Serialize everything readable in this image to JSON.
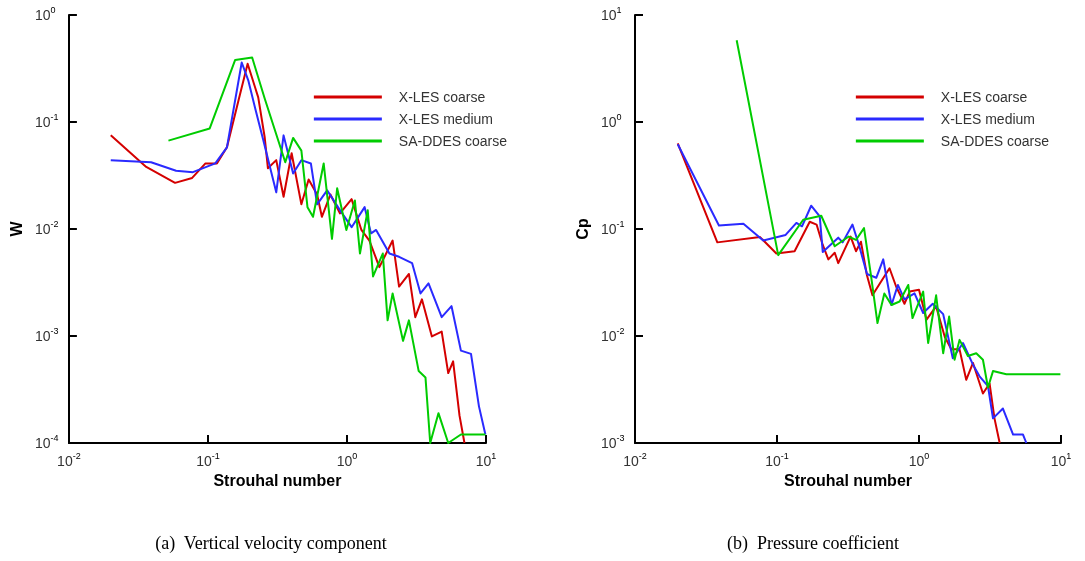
{
  "chart_data": [
    {
      "type": "line",
      "title": "(a)  Vertical velocity component",
      "xlabel": "Strouhal number",
      "ylabel": "W",
      "log": "xy",
      "grid": false,
      "legend": "top right",
      "marker": "none",
      "line_style": "solid",
      "xlim": [
        0.01,
        10
      ],
      "ylim": [
        0.0001,
        1
      ],
      "xticks": [
        {
          "value": 0.01,
          "label": "10$^{-2}$"
        },
        {
          "value": 0.1,
          "label": "10$^{-1}$"
        },
        {
          "value": 1,
          "label": "10$^{0}$"
        },
        {
          "value": 10,
          "label": "10$^{1}$"
        }
      ],
      "yticks": [
        {
          "value": 0.0001,
          "label": "10$^{-4}$"
        },
        {
          "value": 0.001,
          "label": "10$^{-3}$"
        },
        {
          "value": 0.01,
          "label": "10$^{-2}$"
        },
        {
          "value": 0.1,
          "label": "10$^{-1}$"
        },
        {
          "value": 1,
          "label": "10$^{0}$"
        }
      ],
      "series": [
        {
          "name": "X-LES coarse",
          "color": "#d40000",
          "x": [
            0.02,
            0.036,
            0.058,
            0.077,
            0.096,
            0.116,
            0.137,
            0.166,
            0.193,
            0.23,
            0.256,
            0.27,
            0.31,
            0.35,
            0.4,
            0.47,
            0.53,
            0.61,
            0.66,
            0.76,
            0.89,
            1.08,
            1.27,
            1.45,
            1.71,
            2.13,
            2.37,
            2.79,
            3.1,
            3.46,
            4.08,
            4.8,
            5.35,
            5.8,
            6.45,
            7.0
          ],
          "values": [
            0.075,
            0.038,
            0.027,
            0.03,
            0.041,
            0.041,
            0.058,
            0.16,
            0.35,
            0.17,
            0.072,
            0.037,
            0.044,
            0.02,
            0.051,
            0.017,
            0.029,
            0.021,
            0.013,
            0.021,
            0.014,
            0.019,
            0.0098,
            0.0078,
            0.0044,
            0.0078,
            0.0029,
            0.0038,
            0.0015,
            0.0022,
            0.00099,
            0.0011,
            0.00045,
            0.00058,
            0.00018,
            0.0001
          ]
        },
        {
          "name": "X-LES medium",
          "color": "#2a2aff",
          "x": [
            0.02,
            0.039,
            0.059,
            0.078,
            0.113,
            0.137,
            0.175,
            0.195,
            0.22,
            0.25,
            0.31,
            0.35,
            0.41,
            0.47,
            0.55,
            0.61,
            0.72,
            0.89,
            1.08,
            1.34,
            1.49,
            1.62,
            2.02,
            2.37,
            2.94,
            3.38,
            3.86,
            4.8,
            5.65,
            6.6,
            7.8,
            8.9,
            9.9
          ],
          "values": [
            0.044,
            0.042,
            0.035,
            0.034,
            0.041,
            0.058,
            0.36,
            0.245,
            0.13,
            0.068,
            0.022,
            0.075,
            0.033,
            0.044,
            0.041,
            0.017,
            0.023,
            0.015,
            0.0104,
            0.016,
            0.0091,
            0.0098,
            0.0059,
            0.0055,
            0.0048,
            0.0025,
            0.0031,
            0.0015,
            0.0019,
            0.00073,
            0.00068,
            0.00022,
            0.00012
          ]
        },
        {
          "name": "SA-DDES coarse",
          "color": "#00cc00",
          "x": [
            0.052,
            0.103,
            0.157,
            0.208,
            0.256,
            0.36,
            0.41,
            0.47,
            0.52,
            0.57,
            0.68,
            0.78,
            0.85,
            0.99,
            1.14,
            1.24,
            1.41,
            1.54,
            1.81,
            1.96,
            2.13,
            2.53,
            2.79,
            3.28,
            3.67,
            3.97,
            4.55,
            5.35,
            6.6,
            8.2,
            9.9
          ],
          "values": [
            0.067,
            0.087,
            0.38,
            0.4,
            0.166,
            0.042,
            0.071,
            0.054,
            0.016,
            0.013,
            0.041,
            0.0081,
            0.024,
            0.0098,
            0.0185,
            0.0059,
            0.015,
            0.0036,
            0.0059,
            0.0014,
            0.0025,
            0.0009,
            0.0014,
            0.00047,
            0.00041,
            0.0001,
            0.00019,
            0.0001,
            0.00012,
            0.00012,
            0.00012
          ]
        }
      ]
    },
    {
      "type": "line",
      "title": "(b)  Pressure coefficient",
      "xlabel": "Strouhal number",
      "ylabel": "Cp",
      "log": "xy",
      "grid": false,
      "legend": "top right",
      "marker": "none",
      "line_style": "solid",
      "xlim": [
        0.01,
        10
      ],
      "ylim": [
        0.001,
        10
      ],
      "xticks": [
        {
          "value": 0.01,
          "label": "10$^{-2}$"
        },
        {
          "value": 0.1,
          "label": "10$^{-1}$"
        },
        {
          "value": 1,
          "label": "10$^{0}$"
        },
        {
          "value": 10,
          "label": "10$^{1}$"
        }
      ],
      "yticks": [
        {
          "value": 0.001,
          "label": "10$^{-3}$"
        },
        {
          "value": 0.01,
          "label": "10$^{-2}$"
        },
        {
          "value": 0.1,
          "label": "10$^{-1}$"
        },
        {
          "value": 1,
          "label": "10$^{0}$"
        },
        {
          "value": 10,
          "label": "10$^{1}$"
        }
      ],
      "series": [
        {
          "name": "X-LES coarse",
          "color": "#d40000",
          "x": [
            0.02,
            0.038,
            0.076,
            0.099,
            0.133,
            0.17,
            0.19,
            0.21,
            0.23,
            0.255,
            0.27,
            0.33,
            0.36,
            0.39,
            0.43,
            0.47,
            0.53,
            0.62,
            0.69,
            0.79,
            0.86,
            1.0,
            1.13,
            1.32,
            1.52,
            1.69,
            1.93,
            2.15,
            2.4,
            2.82,
            3.14,
            3.4,
            3.7
          ],
          "values": [
            0.63,
            0.075,
            0.084,
            0.059,
            0.062,
            0.117,
            0.11,
            0.071,
            0.052,
            0.06,
            0.048,
            0.085,
            0.062,
            0.076,
            0.037,
            0.024,
            0.031,
            0.043,
            0.029,
            0.02,
            0.026,
            0.027,
            0.0142,
            0.0189,
            0.0098,
            0.0075,
            0.0075,
            0.0039,
            0.0056,
            0.0029,
            0.0036,
            0.0017,
            0.001
          ]
        },
        {
          "name": "X-LES medium",
          "color": "#2a2aff",
          "x": [
            0.02,
            0.039,
            0.058,
            0.08,
            0.115,
            0.137,
            0.15,
            0.174,
            0.2,
            0.21,
            0.27,
            0.29,
            0.34,
            0.38,
            0.43,
            0.5,
            0.56,
            0.64,
            0.71,
            0.79,
            0.93,
            1.07,
            1.25,
            1.48,
            1.73,
            2.04,
            2.4,
            2.67,
            3.06,
            3.32,
            3.9,
            4.6,
            5.4,
            5.7
          ],
          "values": [
            0.62,
            0.108,
            0.112,
            0.078,
            0.088,
            0.114,
            0.106,
            0.165,
            0.131,
            0.061,
            0.083,
            0.075,
            0.11,
            0.069,
            0.038,
            0.035,
            0.052,
            0.0195,
            0.03,
            0.022,
            0.025,
            0.0164,
            0.02,
            0.016,
            0.0062,
            0.0086,
            0.0054,
            0.0042,
            0.0034,
            0.0017,
            0.0021,
            0.0012,
            0.0012,
            0.001
          ]
        },
        {
          "name": "SA-DDES coarse",
          "color": "#00cc00",
          "x": [
            0.052,
            0.102,
            0.153,
            0.205,
            0.255,
            0.32,
            0.36,
            0.41,
            0.46,
            0.51,
            0.57,
            0.64,
            0.73,
            0.84,
            0.9,
            1.07,
            1.16,
            1.32,
            1.48,
            1.63,
            1.78,
            1.93,
            2.21,
            2.53,
            2.82,
            3.06,
            3.32,
            4.12,
            5.4,
            9.9
          ],
          "values": [
            5.8,
            0.057,
            0.122,
            0.133,
            0.069,
            0.085,
            0.079,
            0.102,
            0.036,
            0.0132,
            0.025,
            0.0195,
            0.021,
            0.03,
            0.0147,
            0.026,
            0.0086,
            0.024,
            0.0069,
            0.0152,
            0.006,
            0.0092,
            0.0065,
            0.0069,
            0.006,
            0.0033,
            0.0047,
            0.0044,
            0.0044,
            0.0044
          ]
        }
      ]
    }
  ]
}
